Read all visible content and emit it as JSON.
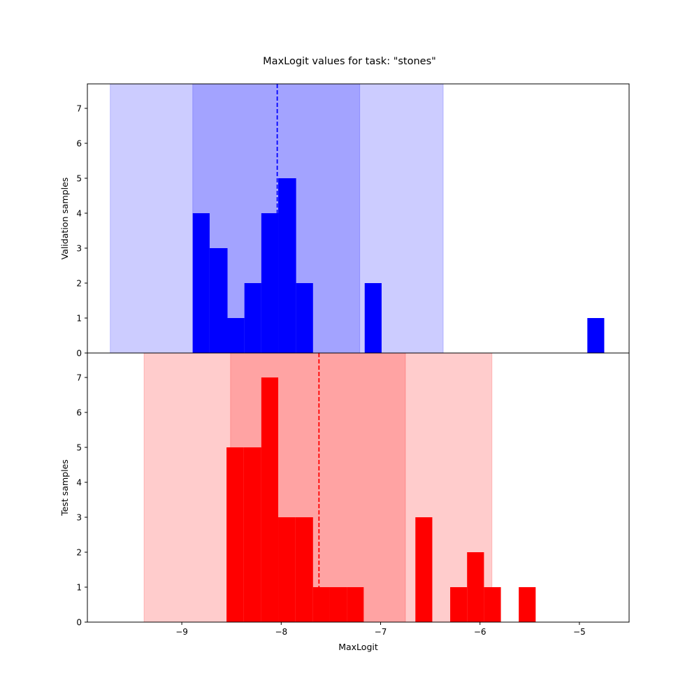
{
  "chart_data": {
    "type": "bar",
    "title": "MaxLogit values for task: \"stones\"",
    "xlabel": "MaxLogit",
    "xlim": [
      -9.95,
      -4.5
    ],
    "xticks": [
      -9,
      -8,
      -7,
      -6,
      -5
    ],
    "xtick_labels": [
      "−9",
      "−8",
      "−7",
      "−6",
      "−5"
    ],
    "panels": [
      {
        "name": "validation",
        "ylabel": "Validation samples",
        "ylim": [
          0,
          7.7
        ],
        "yticks": [
          0,
          1,
          2,
          3,
          4,
          5,
          6,
          7
        ],
        "color": "#0000ff",
        "band_color": "#0000ff",
        "mean": -8.04,
        "inner_band": [
          -8.89,
          -7.21
        ],
        "outer_band": [
          -9.72,
          -6.37
        ],
        "bars": [
          {
            "x0": -8.89,
            "x1": -8.72,
            "count": 4
          },
          {
            "x0": -8.72,
            "x1": -8.54,
            "count": 3
          },
          {
            "x0": -8.54,
            "x1": -8.37,
            "count": 1
          },
          {
            "x0": -8.37,
            "x1": -8.2,
            "count": 2
          },
          {
            "x0": -8.2,
            "x1": -8.03,
            "count": 4
          },
          {
            "x0": -8.03,
            "x1": -7.85,
            "count": 5
          },
          {
            "x0": -7.85,
            "x1": -7.68,
            "count": 2
          },
          {
            "x0": -7.16,
            "x1": -6.99,
            "count": 2
          },
          {
            "x0": -4.92,
            "x1": -4.75,
            "count": 1
          }
        ]
      },
      {
        "name": "test",
        "ylabel": "Test samples",
        "ylim": [
          0,
          7.7
        ],
        "yticks": [
          0,
          1,
          2,
          3,
          4,
          5,
          6,
          7
        ],
        "color": "#ff0000",
        "band_color": "#ff0000",
        "mean": -7.62,
        "inner_band": [
          -8.51,
          -6.75
        ],
        "outer_band": [
          -9.38,
          -5.88
        ],
        "bars": [
          {
            "x0": -8.55,
            "x1": -8.38,
            "count": 5
          },
          {
            "x0": -8.38,
            "x1": -8.2,
            "count": 5
          },
          {
            "x0": -8.2,
            "x1": -8.03,
            "count": 7
          },
          {
            "x0": -8.03,
            "x1": -7.86,
            "count": 3
          },
          {
            "x0": -7.86,
            "x1": -7.68,
            "count": 3
          },
          {
            "x0": -7.68,
            "x1": -7.51,
            "count": 1
          },
          {
            "x0": -7.51,
            "x1": -7.34,
            "count": 1
          },
          {
            "x0": -7.34,
            "x1": -7.17,
            "count": 1
          },
          {
            "x0": -6.65,
            "x1": -6.48,
            "count": 3
          },
          {
            "x0": -6.3,
            "x1": -6.13,
            "count": 1
          },
          {
            "x0": -6.13,
            "x1": -5.96,
            "count": 2
          },
          {
            "x0": -5.96,
            "x1": -5.79,
            "count": 1
          },
          {
            "x0": -5.61,
            "x1": -5.44,
            "count": 1
          }
        ]
      }
    ]
  }
}
